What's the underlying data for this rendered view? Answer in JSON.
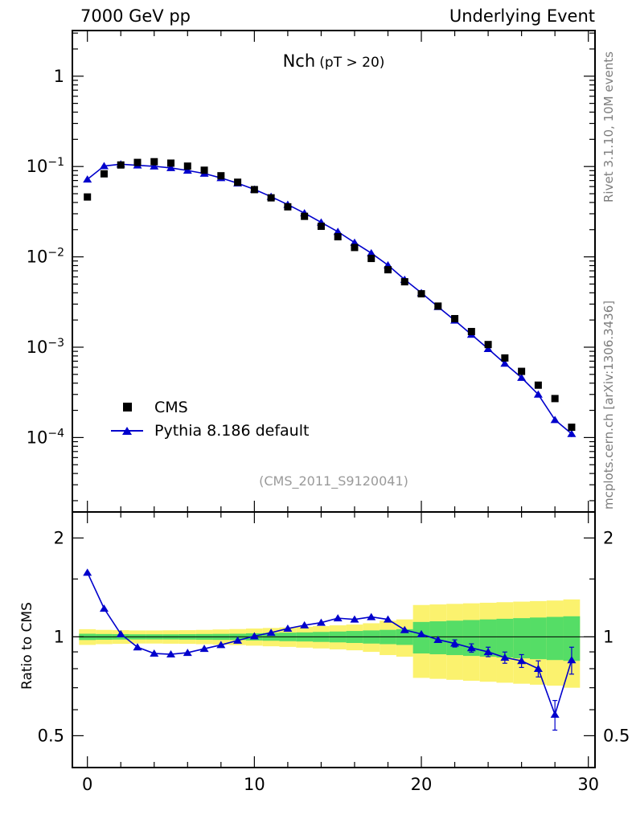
{
  "header": {
    "left": "7000 GeV pp",
    "right": "Underlying Event"
  },
  "plot_title": {
    "main": "Nch",
    "sub": "(pT > 20)"
  },
  "watermark": "(CMS_2011_S9120041)",
  "side_texts": {
    "top": "Rivet 3.1.10, 10M events",
    "bottom": "mcplots.cern.ch [arXiv:1306.3436]"
  },
  "ratio_ylabel": "Ratio to CMS",
  "legend": [
    {
      "label": "CMS",
      "marker": "filled-square",
      "color": "#000000"
    },
    {
      "label": "Pythia 8.186 default",
      "marker": "triangle-on-line",
      "color": "#0000cc"
    }
  ],
  "colors": {
    "pythia_blue": "#0000cc",
    "band_yellow": "#fbf26e",
    "band_green": "#55dd66",
    "frame": "#000000",
    "watermark_gray": "#9a9a9a"
  },
  "chart_data": [
    {
      "type": "scatter",
      "panel": "main",
      "title": "Nch (pT > 20)",
      "yscale": "log",
      "xlim": [
        -0.9,
        30.4
      ],
      "ylim": [
        1.5e-05,
        3.2
      ],
      "xticks": [
        0,
        10,
        20,
        30
      ],
      "yticks": [
        1,
        0.1,
        0.01,
        0.001,
        0.0001
      ],
      "x": [
        0,
        1,
        2,
        3,
        4,
        5,
        6,
        7,
        8,
        9,
        10,
        11,
        12,
        13,
        14,
        15,
        16,
        17,
        18,
        19,
        20,
        21,
        22,
        23,
        24,
        25,
        26,
        27,
        28,
        29
      ],
      "series": [
        {
          "name": "CMS",
          "marker": "square",
          "color": "#000000",
          "values": [
            0.046,
            0.083,
            0.104,
            0.111,
            0.113,
            0.109,
            0.101,
            0.091,
            0.079,
            0.067,
            0.0555,
            0.045,
            0.0358,
            0.0281,
            0.0218,
            0.0167,
            0.0127,
            0.0096,
            0.0072,
            0.0053,
            0.0039,
            0.00285,
            0.00207,
            0.00149,
            0.00107,
            0.00076,
            0.00054,
            0.00038,
            0.00027,
            0.00013
          ]
        },
        {
          "name": "Pythia 8.186 default",
          "marker": "triangle",
          "color": "#0000cc",
          "values": [
            0.0722,
            0.1013,
            0.1061,
            0.1032,
            0.1006,
            0.0965,
            0.0904,
            0.0837,
            0.0747,
            0.0653,
            0.0558,
            0.0464,
            0.0379,
            0.0305,
            0.0241,
            0.019,
            0.0144,
            0.011,
            0.0081,
            0.0056,
            0.004,
            0.0028,
            0.00198,
            0.00138,
            0.00096,
            0.00066,
            0.00046,
            0.0003,
            0.000157,
            0.00011
          ],
          "yerr_rel": [
            0.03,
            0.02,
            0.012,
            0.01,
            0.008,
            0.008,
            0.008,
            0.008,
            0.008,
            0.008,
            0.009,
            0.009,
            0.01,
            0.01,
            0.011,
            0.012,
            0.013,
            0.014,
            0.016,
            0.018,
            0.02,
            0.022,
            0.024,
            0.027,
            0.03,
            0.034,
            0.038,
            0.045,
            0.06,
            0.08
          ]
        }
      ]
    },
    {
      "type": "line",
      "panel": "ratio",
      "ylabel": "Ratio to CMS",
      "yscale": "log",
      "ylim": [
        0.4,
        2.4
      ],
      "yticks": [
        0.5,
        1,
        2
      ],
      "yticks_minor": [
        0.6,
        0.7,
        0.8,
        0.9,
        1.5
      ],
      "color": "#0000cc",
      "x": [
        0,
        1,
        2,
        3,
        4,
        5,
        6,
        7,
        8,
        9,
        10,
        11,
        12,
        13,
        14,
        15,
        16,
        17,
        18,
        19,
        20,
        21,
        22,
        23,
        24,
        25,
        26,
        27,
        28,
        29
      ],
      "values": [
        1.57,
        1.22,
        1.02,
        0.93,
        0.89,
        0.885,
        0.895,
        0.92,
        0.945,
        0.975,
        1.005,
        1.03,
        1.06,
        1.085,
        1.105,
        1.14,
        1.13,
        1.15,
        1.13,
        1.05,
        1.02,
        0.98,
        0.955,
        0.925,
        0.9,
        0.865,
        0.845,
        0.8,
        0.58,
        0.85
      ],
      "yerr": [
        0.03,
        0.02,
        0.012,
        0.01,
        0.008,
        0.008,
        0.008,
        0.008,
        0.008,
        0.008,
        0.009,
        0.009,
        0.01,
        0.01,
        0.011,
        0.012,
        0.013,
        0.014,
        0.016,
        0.018,
        0.02,
        0.022,
        0.024,
        0.027,
        0.03,
        0.034,
        0.038,
        0.045,
        0.06,
        0.08
      ],
      "bands": {
        "yellow_half": [
          0.055,
          0.05,
          0.048,
          0.046,
          0.046,
          0.047,
          0.048,
          0.05,
          0.053,
          0.056,
          0.06,
          0.064,
          0.068,
          0.073,
          0.078,
          0.084,
          0.09,
          0.1,
          0.12,
          0.13,
          0.25,
          0.255,
          0.26,
          0.265,
          0.27,
          0.275,
          0.28,
          0.285,
          0.29,
          0.3
        ],
        "green_half": [
          0.022,
          0.02,
          0.019,
          0.018,
          0.018,
          0.018,
          0.019,
          0.02,
          0.021,
          0.022,
          0.025,
          0.027,
          0.03,
          0.032,
          0.035,
          0.038,
          0.042,
          0.046,
          0.05,
          0.055,
          0.11,
          0.115,
          0.12,
          0.125,
          0.13,
          0.135,
          0.14,
          0.145,
          0.15,
          0.155
        ]
      }
    }
  ]
}
